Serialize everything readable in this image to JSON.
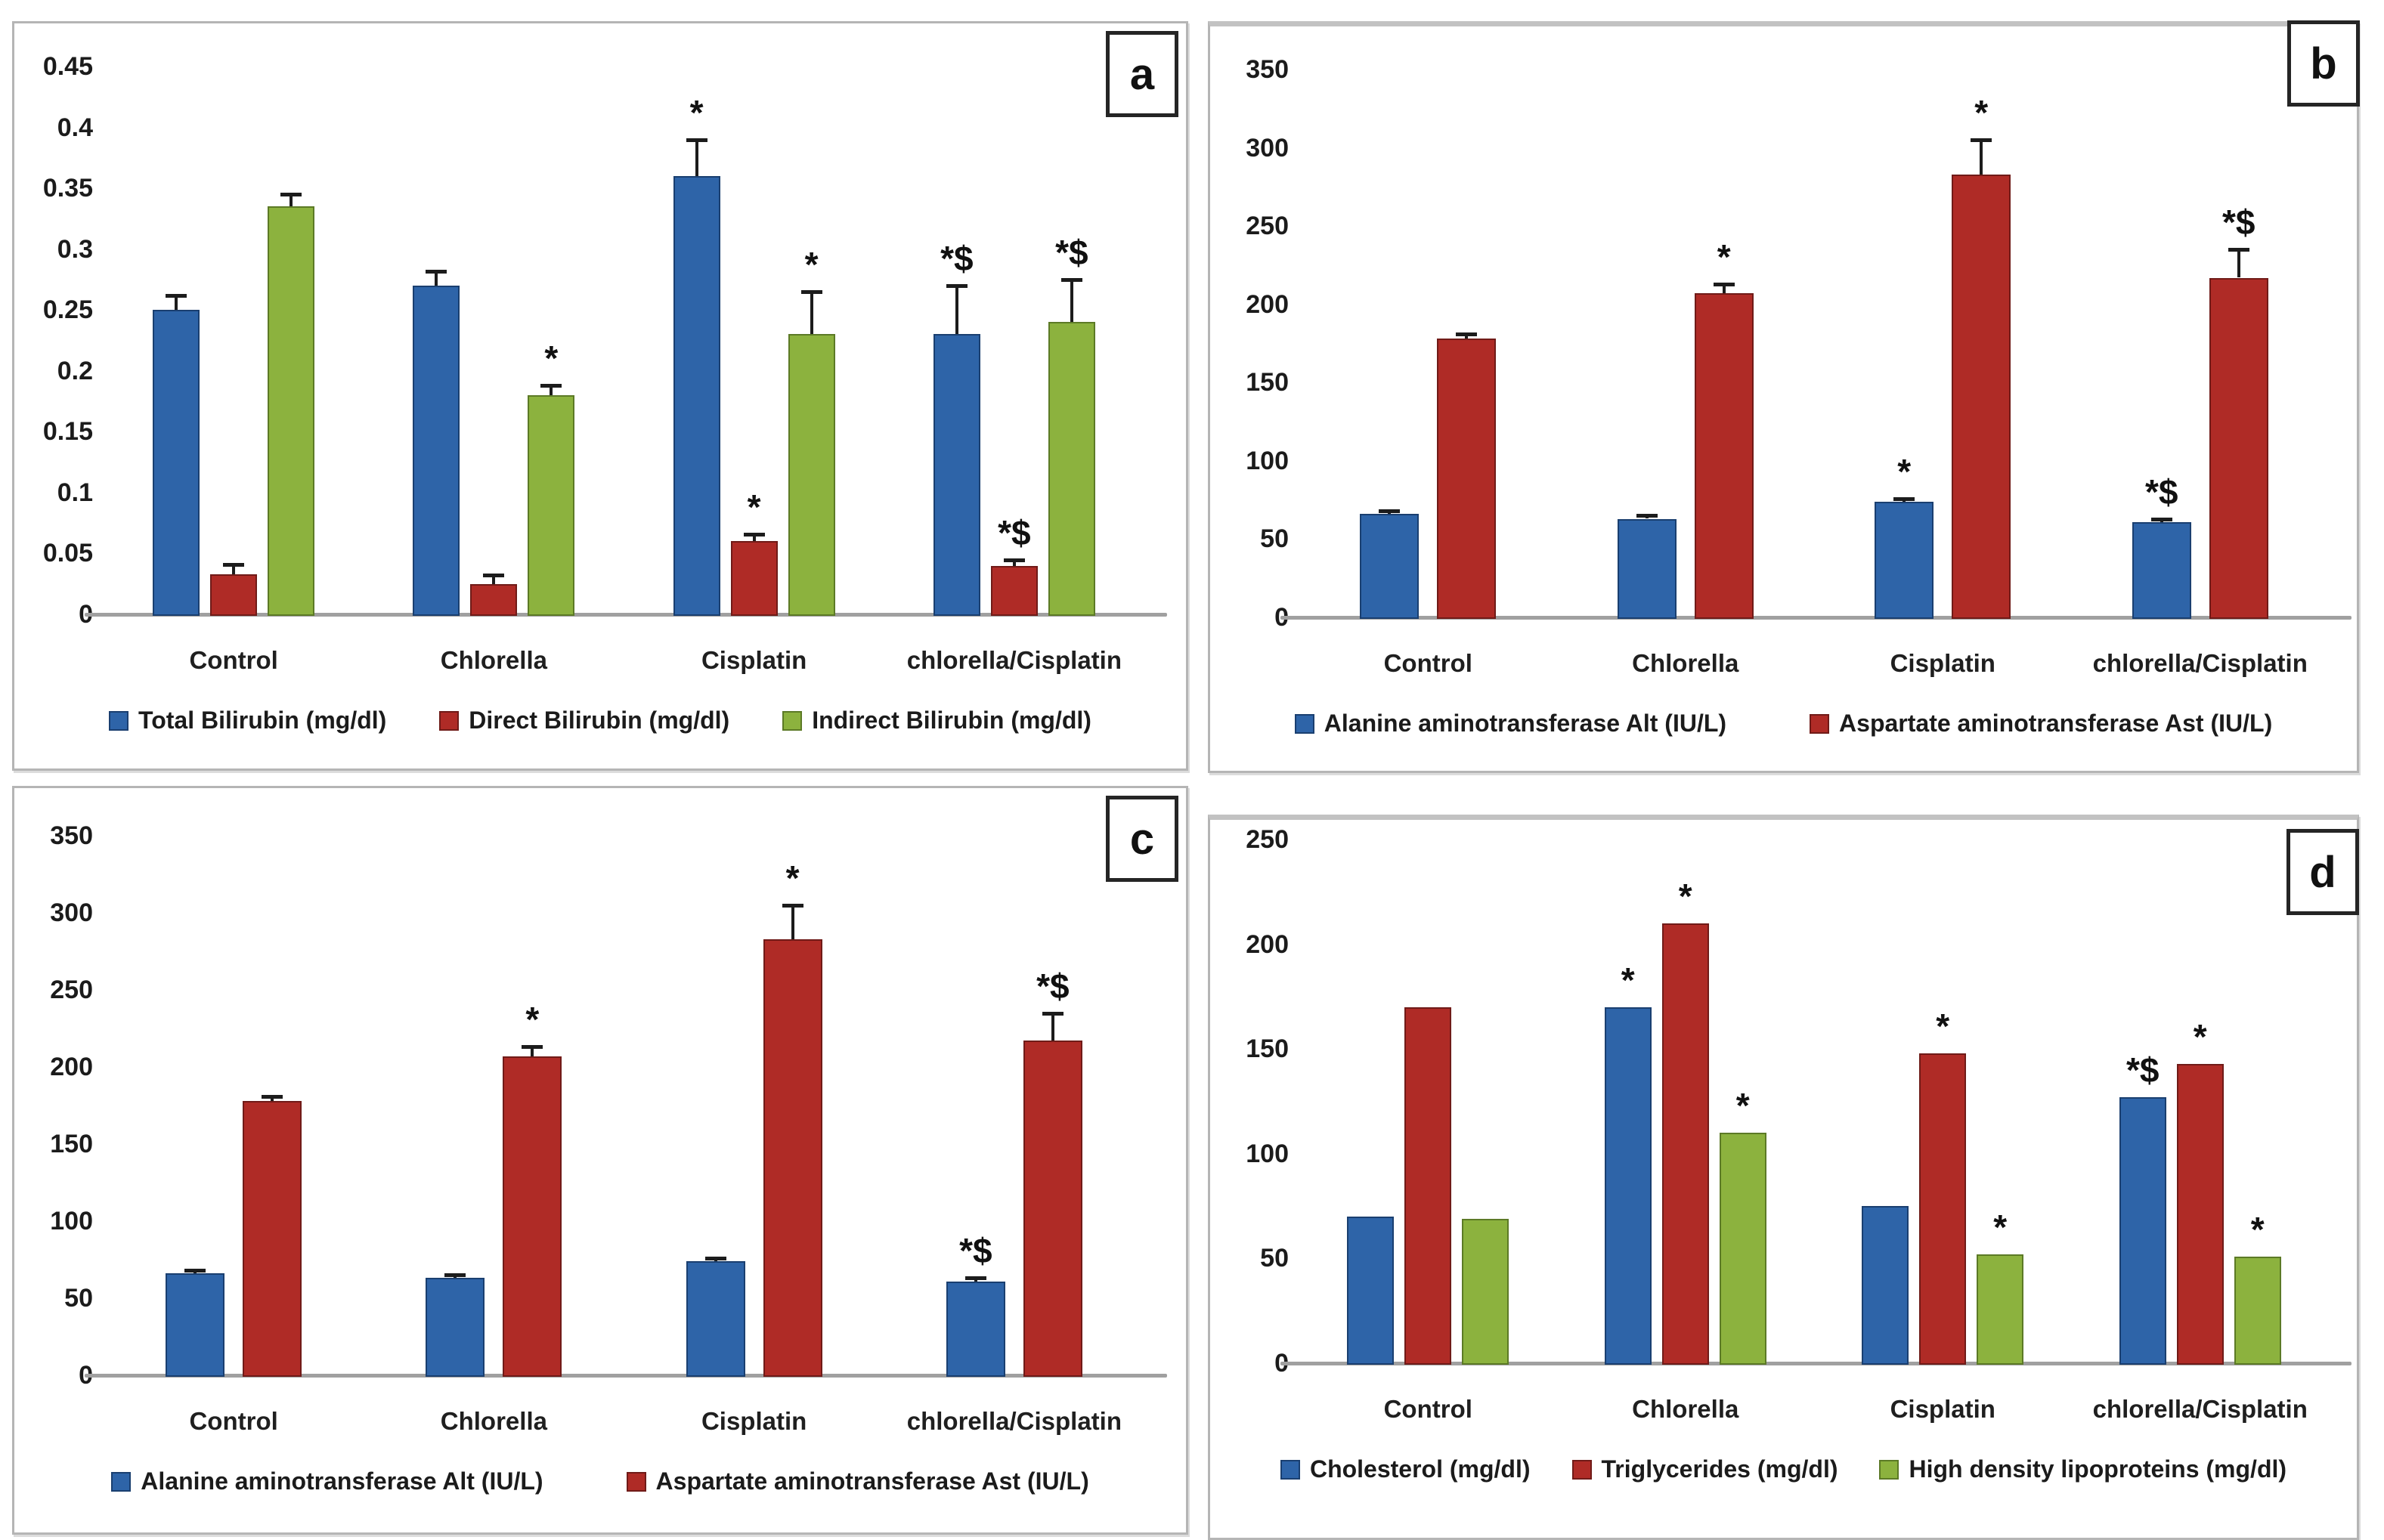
{
  "figure": {
    "panel_labels": [
      "a",
      "b",
      "c",
      "d"
    ]
  },
  "chart_data": [
    {
      "type": "bar",
      "panel_label": "a",
      "title": "",
      "xlabel": "",
      "ylabel": "",
      "ylim": [
        0,
        0.45
      ],
      "ystep": 0.05,
      "y_tick_labels": [
        "0",
        "0.05",
        "0.1",
        "0.15",
        "0.2",
        "0.25",
        "0.3",
        "0.35",
        "0.4",
        "0.45"
      ],
      "grid": false,
      "legend_position": "bottom",
      "categories": [
        "Control",
        "Chlorella",
        "Cisplatin",
        "chlorella/Cisplatin"
      ],
      "series": [
        {
          "name": "Total Bilirubin (mg/dl)",
          "color": "#2e64a8",
          "border_color": "#1a3f70",
          "values": [
            0.25,
            0.27,
            0.36,
            0.23
          ],
          "errors": [
            0.012,
            0.012,
            0.03,
            0.04
          ],
          "annotations": [
            "",
            "",
            "*",
            "*$"
          ]
        },
        {
          "name": "Direct Bilirubin (mg/dl)",
          "color": "#af2b26",
          "border_color": "#701b18",
          "values": [
            0.033,
            0.025,
            0.06,
            0.04
          ],
          "errors": [
            0.008,
            0.007,
            0.006,
            0.005
          ],
          "annotations": [
            "",
            "",
            "*",
            "*$"
          ]
        },
        {
          "name": "Indirect Bilirubin (mg/dl)",
          "color": "#8cb23e",
          "border_color": "#5c7a26",
          "values": [
            0.335,
            0.18,
            0.23,
            0.24
          ],
          "errors": [
            0.01,
            0.008,
            0.035,
            0.035
          ],
          "annotations": [
            "",
            "*",
            "*",
            "*$"
          ]
        }
      ]
    },
    {
      "type": "bar",
      "panel_label": "b",
      "title": "",
      "xlabel": "",
      "ylabel": "",
      "ylim": [
        0,
        350
      ],
      "ystep": 50,
      "y_tick_labels": [
        "0",
        "50",
        "100",
        "150",
        "200",
        "250",
        "300",
        "350"
      ],
      "grid": false,
      "legend_position": "bottom",
      "categories": [
        "Control",
        "Chlorella",
        "Cisplatin",
        "chlorella/Cisplatin"
      ],
      "series": [
        {
          "name": "Alanine aminotransferase Alt (IU/L)",
          "color": "#2e64a8",
          "border_color": "#1a3f70",
          "values": [
            66,
            63,
            74,
            61
          ],
          "errors": [
            2,
            2,
            2,
            2
          ],
          "annotations": [
            "",
            "",
            "*",
            "*$"
          ]
        },
        {
          "name": "Aspartate aminotransferase Ast (IU/L)",
          "color": "#af2b26",
          "border_color": "#701b18",
          "values": [
            178,
            207,
            283,
            217
          ],
          "errors": [
            3,
            6,
            22,
            18
          ],
          "annotations": [
            "",
            "*",
            "*",
            "*$"
          ]
        }
      ]
    },
    {
      "type": "bar",
      "panel_label": "c",
      "title": "",
      "xlabel": "",
      "ylabel": "",
      "ylim": [
        0,
        350
      ],
      "ystep": 50,
      "y_tick_labels": [
        "0",
        "50",
        "100",
        "150",
        "200",
        "250",
        "300",
        "350"
      ],
      "grid": false,
      "legend_position": "bottom",
      "categories": [
        "Control",
        "Chlorella",
        "Cisplatin",
        "chlorella/Cisplatin"
      ],
      "series": [
        {
          "name": "Alanine aminotransferase Alt (IU/L)",
          "color": "#2e64a8",
          "border_color": "#1a3f70",
          "values": [
            66,
            63,
            74,
            61
          ],
          "errors": [
            2,
            2,
            2,
            2
          ],
          "annotations": [
            "",
            "",
            "",
            "*$"
          ]
        },
        {
          "name": "Aspartate aminotransferase Ast (IU/L)",
          "color": "#af2b26",
          "border_color": "#701b18",
          "values": [
            178,
            207,
            283,
            217
          ],
          "errors": [
            3,
            6,
            22,
            18
          ],
          "annotations": [
            "",
            "*",
            "*",
            "*$"
          ]
        }
      ]
    },
    {
      "type": "bar",
      "panel_label": "d",
      "title": "",
      "xlabel": "",
      "ylabel": "",
      "ylim": [
        0,
        250
      ],
      "ystep": 50,
      "y_tick_labels": [
        "0",
        "50",
        "100",
        "150",
        "200",
        "250"
      ],
      "grid": false,
      "legend_position": "bottom",
      "categories": [
        "Control",
        "Chlorella",
        "Cisplatin",
        "chlorella/Cisplatin"
      ],
      "series": [
        {
          "name": "Cholesterol (mg/dl)",
          "color": "#2e64a8",
          "border_color": "#1a3f70",
          "values": [
            70,
            170,
            75,
            127
          ],
          "errors": [
            0,
            0,
            0,
            0
          ],
          "annotations": [
            "",
            "*",
            "",
            "*$"
          ]
        },
        {
          "name": "Triglycerides (mg/dl)",
          "color": "#af2b26",
          "border_color": "#701b18",
          "values": [
            170,
            210,
            148,
            143
          ],
          "errors": [
            0,
            0,
            0,
            0
          ],
          "annotations": [
            "",
            "*",
            "*",
            "*"
          ]
        },
        {
          "name": "High density lipoproteins (mg/dl)",
          "color": "#8cb23e",
          "border_color": "#5c7a26",
          "values": [
            69,
            110,
            52,
            51
          ],
          "errors": [
            0,
            0,
            0,
            0
          ],
          "annotations": [
            "",
            "*",
            "*",
            "*"
          ]
        }
      ]
    }
  ]
}
